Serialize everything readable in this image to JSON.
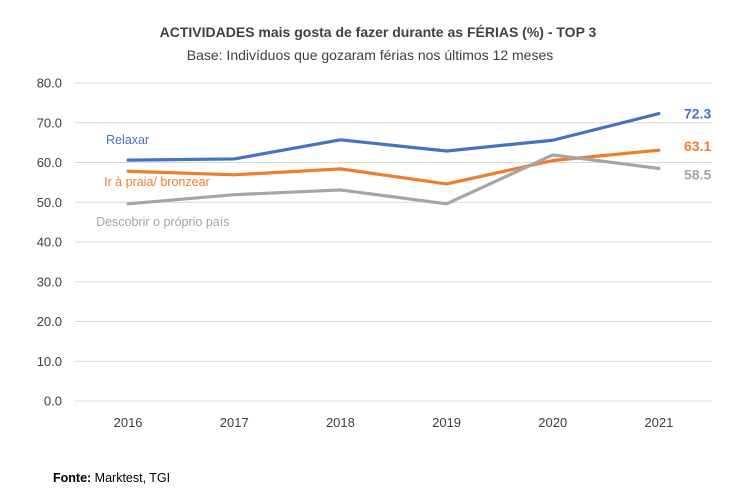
{
  "chart_data": {
    "type": "line",
    "title": "ACTIVIDADES mais gosta de fazer durante as FÉRIAS (%) - TOP 3",
    "subtitle": "Base: Indivíduos que gozaram férias nos últimos 12 meses",
    "categories": [
      "2016",
      "2017",
      "2018",
      "2019",
      "2020",
      "2021"
    ],
    "ylim": [
      0,
      80
    ],
    "yticks": [
      "0.0",
      "10.0",
      "20.0",
      "30.0",
      "40.0",
      "50.0",
      "60.0",
      "70.0",
      "80.0"
    ],
    "grid": true,
    "series": [
      {
        "name": "Relaxar",
        "color": "#4472C4",
        "values": [
          60.6,
          60.9,
          65.7,
          62.9,
          65.6,
          72.3
        ],
        "end_label": "72.3"
      },
      {
        "name": "Ir à praia/ bronzear",
        "color": "#ED7D31",
        "values": [
          57.8,
          56.9,
          58.4,
          54.6,
          60.5,
          63.1
        ],
        "end_label": "63.1"
      },
      {
        "name": "Descobrir o próprio país",
        "color": "#A5A5A5",
        "values": [
          49.6,
          51.9,
          53.1,
          49.6,
          61.9,
          58.5
        ],
        "end_label": "58.5"
      }
    ]
  },
  "source": {
    "label": "Fonte:",
    "text": " Marktest, TGI"
  }
}
